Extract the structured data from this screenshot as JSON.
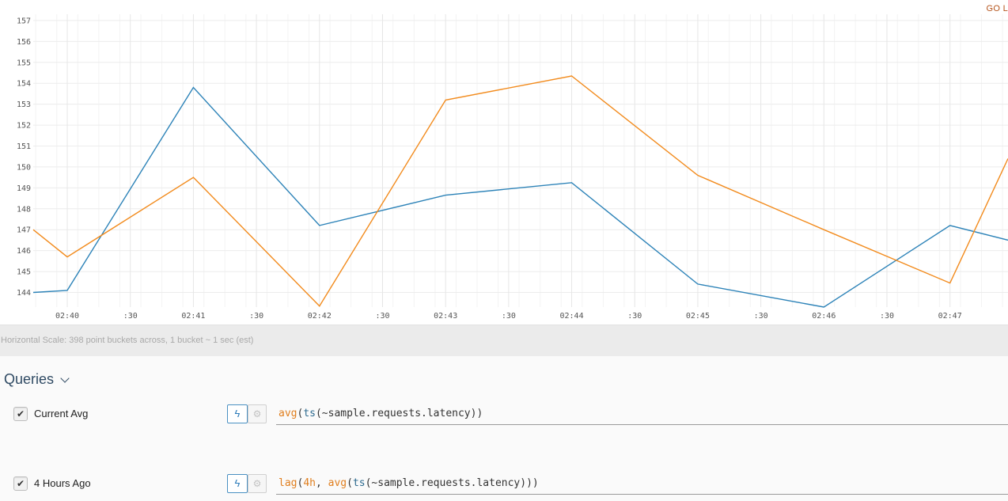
{
  "go_live_label": "GO L",
  "scale_note": "Horizontal Scale: 398 point buckets across, 1 bucket ~ 1 sec (est)",
  "queries": {
    "header": "Queries",
    "items": [
      {
        "checked": true,
        "name": "Current Avg",
        "expr_parts": [
          {
            "t": "avg",
            "c": "fn"
          },
          {
            "t": "(",
            "c": "plain"
          },
          {
            "t": "ts",
            "c": "ts"
          },
          {
            "t": "(~sample.requests.latency))",
            "c": "plain"
          }
        ]
      },
      {
        "checked": true,
        "name": "4 Hours Ago",
        "expr_parts": [
          {
            "t": "lag",
            "c": "fn"
          },
          {
            "t": "(",
            "c": "plain"
          },
          {
            "t": "4h",
            "c": "num"
          },
          {
            "t": ", ",
            "c": "plain"
          },
          {
            "t": "avg",
            "c": "fn"
          },
          {
            "t": "(",
            "c": "plain"
          },
          {
            "t": "ts",
            "c": "ts"
          },
          {
            "t": "(~sample.requests.latency)))",
            "c": "plain"
          }
        ]
      }
    ]
  },
  "icons": {
    "bolt": "bolt-icon",
    "gear": "gear-icon",
    "check": "check-icon",
    "chevron": "chevron-down-icon"
  },
  "chart_data": {
    "type": "line",
    "y_ticks": [
      144,
      145,
      146,
      147,
      148,
      149,
      150,
      151,
      152,
      153,
      154,
      155,
      156,
      157
    ],
    "ylim": [
      143.3,
      157.3
    ],
    "x_ticks": [
      "02:40",
      ":30",
      "02:41",
      ":30",
      "02:42",
      ":30",
      "02:43",
      ":30",
      "02:44",
      ":30",
      "02:45",
      ":30",
      "02:46",
      ":30",
      "02:47",
      ":"
    ],
    "x_tick_minutes": [
      0,
      0.5,
      1,
      1.5,
      2,
      2.5,
      3,
      3.5,
      4,
      4.5,
      5,
      5.5,
      6,
      6.5,
      7,
      7.5
    ],
    "xlim_minutes": [
      -0.27,
      7.46
    ],
    "grid": true,
    "series": [
      {
        "color": "#2d83b8",
        "x_minutes": [
          -0.27,
          0,
          1,
          2,
          3,
          4,
          5,
          6,
          7,
          7.46
        ],
        "values": [
          144.0,
          144.1,
          153.8,
          147.2,
          148.65,
          149.25,
          144.4,
          143.3,
          147.2,
          146.5
        ]
      },
      {
        "color": "#f28b1d",
        "x_minutes": [
          -0.27,
          0,
          1,
          2,
          3,
          4,
          5,
          6,
          7,
          7.46
        ],
        "values": [
          147.0,
          145.7,
          149.5,
          143.35,
          153.2,
          154.35,
          149.6,
          147.0,
          144.45,
          150.4
        ]
      }
    ]
  }
}
